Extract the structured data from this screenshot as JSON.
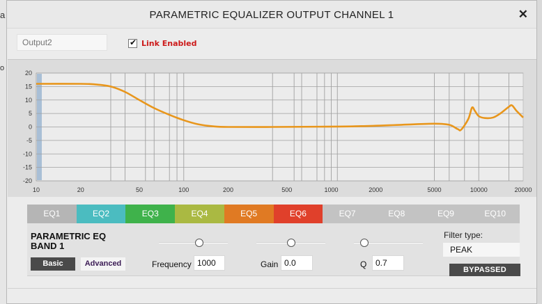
{
  "window": {
    "title": "PARAMETRIC EQUALIZER OUTPUT CHANNEL 1",
    "close_label": "✕"
  },
  "background_fragments": {
    "line1": "al",
    "line2": "o"
  },
  "output_field": {
    "placeholder": "Output2",
    "value": ""
  },
  "link": {
    "label": "Link Enabled",
    "checked": true
  },
  "tabs": [
    {
      "label": "EQ1",
      "color": "#b5b5b5"
    },
    {
      "label": "EQ2",
      "color": "#4bbcc0"
    },
    {
      "label": "EQ3",
      "color": "#3fb24b"
    },
    {
      "label": "EQ4",
      "color": "#aab942"
    },
    {
      "label": "EQ5",
      "color": "#e07a23"
    },
    {
      "label": "EQ6",
      "color": "#e0402b"
    },
    {
      "label": "EQ7",
      "color": "#c3c3c3"
    },
    {
      "label": "EQ8",
      "color": "#c3c3c3"
    },
    {
      "label": "EQ9",
      "color": "#c3c3c3"
    },
    {
      "label": "EQ10",
      "color": "#c3c3c3"
    }
  ],
  "band": {
    "title_line1": "PARAMETRIC EQ",
    "title_line2": "BAND 1",
    "basic_label": "Basic",
    "advanced_label": "Advanced",
    "frequency_label": "Frequency",
    "frequency_value": "1000",
    "frequency_slider": 0.6,
    "gain_label": "Gain",
    "gain_value": "0.0",
    "gain_slider": 0.5,
    "q_label": "Q",
    "q_value": "0.7",
    "q_slider": 0.1,
    "filter_type_label": "Filter type:",
    "filter_type_value": "PEAK",
    "bypass_label": "BYPASSED"
  },
  "graph": {
    "curve_color": "#e8961c",
    "y_ticks": [
      "20",
      "15",
      "10",
      "5",
      "0",
      "-5",
      "-10",
      "-15",
      "-20"
    ],
    "x_ticks": [
      "10",
      "20",
      "50",
      "100",
      "200",
      "500",
      "1000",
      "2000",
      "5000",
      "10000",
      "20000"
    ],
    "ylim": [
      -20,
      20
    ],
    "xlim": [
      10,
      20000
    ],
    "log_x": true,
    "band_markers_hz": [
      10,
      32,
      40,
      55,
      63,
      80,
      90,
      100,
      400,
      560,
      630,
      800,
      900,
      1000,
      1100,
      5000,
      6300,
      8000,
      10000,
      16000
    ],
    "curve": [
      [
        10,
        16
      ],
      [
        20,
        16
      ],
      [
        25,
        15.8
      ],
      [
        32,
        15
      ],
      [
        40,
        13
      ],
      [
        50,
        10
      ],
      [
        63,
        7
      ],
      [
        80,
        4.5
      ],
      [
        100,
        2.5
      ],
      [
        125,
        1
      ],
      [
        160,
        0.2
      ],
      [
        200,
        0
      ],
      [
        400,
        0
      ],
      [
        800,
        0.1
      ],
      [
        1600,
        0.3
      ],
      [
        3000,
        0.8
      ],
      [
        5000,
        1.2
      ],
      [
        6300,
        0.8
      ],
      [
        7200,
        -0.8
      ],
      [
        7600,
        -1
      ],
      [
        8500,
        3
      ],
      [
        9000,
        7.2
      ],
      [
        9400,
        6
      ],
      [
        10000,
        4
      ],
      [
        11000,
        3.3
      ],
      [
        12500,
        3.5
      ],
      [
        14000,
        5
      ],
      [
        16000,
        7.5
      ],
      [
        16800,
        8
      ],
      [
        18000,
        6
      ],
      [
        20000,
        3.5
      ]
    ]
  }
}
